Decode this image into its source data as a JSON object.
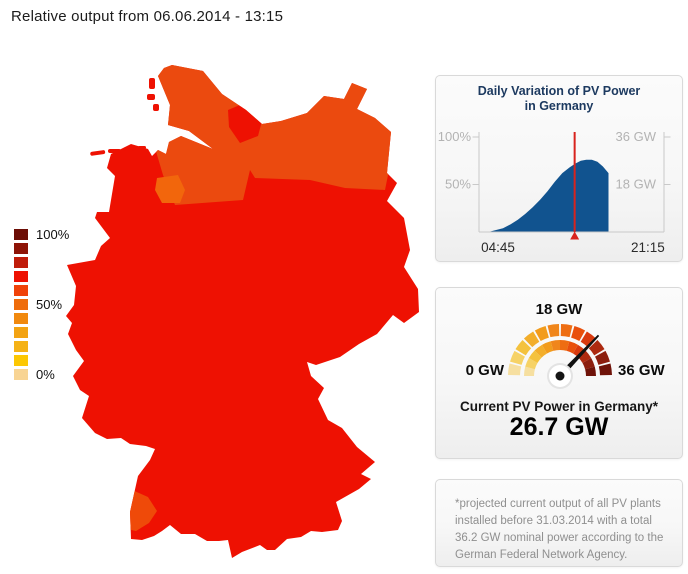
{
  "page": {
    "title": "Relative output from 06.06.2014 - 13:15"
  },
  "map": {
    "colors": {
      "main": "#ee1102",
      "north": "#eb4a0f",
      "southwest": "#ef4a09",
      "bremen_patch": "#f2660c",
      "luebeck_patch": "#ee1102",
      "islands": "#ee1102"
    },
    "legend": {
      "items": [
        {
          "label": "100%",
          "color": "#6c0d05"
        },
        {
          "label": "",
          "color": "#8e1407"
        },
        {
          "label": "",
          "color": "#c01c0a"
        },
        {
          "label": "",
          "color": "#ee1102"
        },
        {
          "label": "",
          "color": "#f04208"
        },
        {
          "label": "50%",
          "color": "#ef6c0b"
        },
        {
          "label": "",
          "color": "#f1890e"
        },
        {
          "label": "",
          "color": "#f3a312"
        },
        {
          "label": "",
          "color": "#f5b216"
        },
        {
          "label": "",
          "color": "#fcc702"
        },
        {
          "label": "0%",
          "color": "#f8d493"
        }
      ]
    }
  },
  "chart_data": [
    {
      "type": "area",
      "title": "Daily Variation of PV Power in Germany",
      "title_line1": "Daily Variation of PV Power",
      "title_line2": "in Germany",
      "series_color": "#11538f",
      "axis_color": "#c9c9c9",
      "tick_label_color": "#b3b3b3",
      "time_label_color": "#2b2b2b",
      "y_left_ticks": [
        {
          "label": "100%",
          "pct": 100
        },
        {
          "label": "50%",
          "pct": 50
        }
      ],
      "y_right_ticks": [
        {
          "label": "36 GW",
          "pct": 100
        },
        {
          "label": "18 GW",
          "pct": 50
        }
      ],
      "x_ticks": [
        {
          "label": "04:45",
          "f": 0.103
        },
        {
          "label": "21:15",
          "f": 0.913
        }
      ],
      "ylim": [
        0,
        100
      ],
      "points": [
        [
          0.05,
          0
        ],
        [
          0.09,
          2
        ],
        [
          0.13,
          4
        ],
        [
          0.17,
          8
        ],
        [
          0.21,
          13
        ],
        [
          0.25,
          19
        ],
        [
          0.29,
          26
        ],
        [
          0.33,
          34
        ],
        [
          0.37,
          43
        ],
        [
          0.41,
          53
        ],
        [
          0.45,
          62
        ],
        [
          0.49,
          68
        ],
        [
          0.52,
          72
        ],
        [
          0.55,
          75
        ],
        [
          0.58,
          76
        ],
        [
          0.61,
          76
        ],
        [
          0.64,
          74
        ],
        [
          0.67,
          69
        ],
        [
          0.7,
          62
        ]
      ],
      "current_time_marker": {
        "f": 0.517,
        "color": "#d8231d"
      }
    },
    {
      "type": "gauge",
      "min": 0,
      "max": 36,
      "value": 26.7,
      "min_label": "0 GW",
      "mid_label": "18 GW",
      "max_label": "36 GW",
      "caption": "Current PV Power in Germany*",
      "value_label": "26.7 GW",
      "needle_color": "#111111",
      "segment_colors": [
        "#f6dfa0",
        "#f6d266",
        "#f4c23e",
        "#f3ae2b",
        "#f29c1c",
        "#f0861b",
        "#ee6d12",
        "#e9500c",
        "#d93a0e",
        "#ad2a10",
        "#8c1e0e",
        "#6f1309"
      ]
    }
  ],
  "footnote": {
    "text": "*projected current output of all PV plants installed before 31.03.2014 with a total 36.2 GW nominal power according to the German Federal Network Agency."
  }
}
